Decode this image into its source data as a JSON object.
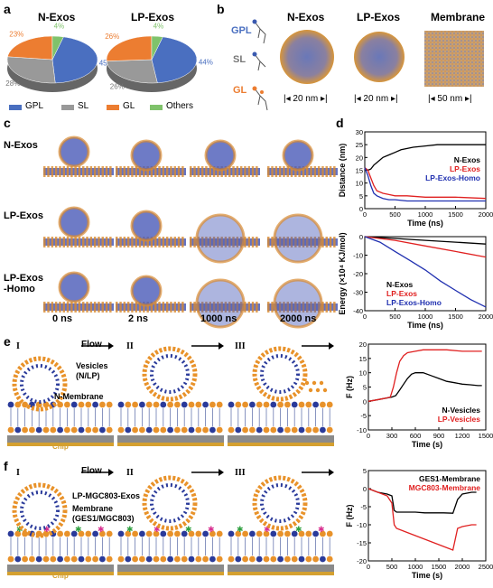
{
  "panels": {
    "a": {
      "letter": "a",
      "pies": [
        {
          "title": "N-Exos",
          "slices": [
            {
              "name": "GPL",
              "value": 45,
              "label": "45%",
              "color": "#4a6fc0"
            },
            {
              "name": "SL",
              "value": 28,
              "label": "28%",
              "color": "#999999"
            },
            {
              "name": "GL",
              "value": 23,
              "label": "23%",
              "color": "#ec7d31"
            },
            {
              "name": "Others",
              "value": 4,
              "label": "4%",
              "color": "#7fc26b"
            }
          ]
        },
        {
          "title": "LP-Exos",
          "slices": [
            {
              "name": "GPL",
              "value": 44,
              "label": "44%",
              "color": "#4a6fc0"
            },
            {
              "name": "SL",
              "value": 26,
              "label": "26%",
              "color": "#999999"
            },
            {
              "name": "GL",
              "value": 26,
              "label": "26%",
              "color": "#ec7d31"
            },
            {
              "name": "Others",
              "value": 4,
              "label": "4%",
              "color": "#7fc26b"
            }
          ]
        }
      ],
      "legend": [
        "GPL",
        "SL",
        "GL",
        "Others"
      ]
    },
    "b": {
      "letter": "b",
      "lipids": [
        "GPL",
        "SL",
        "GL"
      ],
      "columns": [
        "N-Exos",
        "LP-Exos",
        "Membrane"
      ],
      "scales": [
        "20 nm",
        "20 nm",
        "50 nm"
      ]
    },
    "c": {
      "letter": "c",
      "rows": [
        "N-Exos",
        "LP-Exos",
        "LP-Exos\n-Homo"
      ],
      "times": [
        "0 ns",
        "2 ns",
        "1000 ns",
        "2000 ns"
      ]
    },
    "d": {
      "letter": "d"
    },
    "e": {
      "letter": "e",
      "steps": [
        "I",
        "II",
        "III"
      ],
      "flow": "Flow",
      "vesicle_label": "Vesicles\n(N/LP)",
      "membrane_label": "N-Membrane",
      "chip": "Chip"
    },
    "f": {
      "letter": "f",
      "steps": [
        "I",
        "II",
        "III"
      ],
      "flow": "Flow",
      "vesicle_label": "LP-MGC803-Exos",
      "membrane_label": "Membrane\n(GES1/MGC803)",
      "chip": "Chip"
    }
  },
  "chart_data": [
    {
      "type": "line",
      "id": "d-distance",
      "ylabel": "Distance (nm)",
      "xlabel": "Time (ns)",
      "xlim": [
        0,
        2000
      ],
      "ylim": [
        0,
        30
      ],
      "xticks": [
        0,
        500,
        1000,
        1500,
        2000
      ],
      "yticks": [
        0,
        5,
        10,
        15,
        20,
        25,
        30
      ],
      "series": [
        {
          "name": "N-Exos",
          "color": "#000000",
          "x": [
            0,
            50,
            100,
            150,
            200,
            300,
            400,
            500,
            600,
            800,
            1000,
            1200,
            1500,
            1800,
            2000
          ],
          "y": [
            16,
            15,
            15.5,
            17,
            18,
            20,
            21,
            22,
            23,
            24,
            24.5,
            25,
            25,
            25,
            25
          ]
        },
        {
          "name": "LP-Exos",
          "color": "#e02020",
          "x": [
            0,
            50,
            100,
            150,
            200,
            300,
            400,
            500,
            700,
            1000,
            1500,
            2000
          ],
          "y": [
            16,
            15,
            12,
            9,
            7,
            6,
            5.5,
            5,
            5,
            4.5,
            4.5,
            4
          ]
        },
        {
          "name": "LP-Exos-Homo",
          "color": "#2030b0",
          "x": [
            0,
            50,
            100,
            150,
            200,
            300,
            400,
            500,
            700,
            1000,
            1500,
            2000
          ],
          "y": [
            16,
            13,
            9,
            6,
            5,
            4,
            3.5,
            3.5,
            3,
            3,
            3,
            3
          ]
        }
      ]
    },
    {
      "type": "line",
      "id": "d-energy",
      "ylabel": "Energy (×10⁴ KJ/mol)",
      "xlabel": "Time (ns)",
      "xlim": [
        0,
        2000
      ],
      "ylim": [
        -40,
        0
      ],
      "xticks": [
        0,
        500,
        1000,
        1500,
        2000
      ],
      "yticks": [
        0,
        -10,
        -20,
        -30,
        -40
      ],
      "series": [
        {
          "name": "N-Exos",
          "color": "#000000",
          "x": [
            0,
            500,
            1000,
            1500,
            2000
          ],
          "y": [
            0,
            -1,
            -2,
            -3,
            -4
          ]
        },
        {
          "name": "LP-Exos",
          "color": "#e02020",
          "x": [
            0,
            500,
            1000,
            1500,
            2000
          ],
          "y": [
            0,
            -2,
            -5,
            -8,
            -11
          ]
        },
        {
          "name": "LP-Exos-Homo",
          "color": "#2030b0",
          "x": [
            0,
            250,
            500,
            750,
            1000,
            1250,
            1500,
            1750,
            2000
          ],
          "y": [
            0,
            -3,
            -8,
            -13,
            -18,
            -24,
            -29,
            -34,
            -38
          ]
        }
      ]
    },
    {
      "type": "line",
      "id": "e-qcm",
      "ylabel": "F (Hz)",
      "xlabel": "Time (s)",
      "xlim": [
        0,
        1500
      ],
      "ylim": [
        -10,
        20
      ],
      "xticks": [
        0,
        300,
        600,
        900,
        1200,
        1500
      ],
      "yticks": [
        -10,
        -5,
        0,
        5,
        10,
        15,
        20
      ],
      "series": [
        {
          "name": "N-Vesicles",
          "color": "#000000",
          "x": [
            0,
            100,
            200,
            300,
            350,
            400,
            450,
            500,
            550,
            600,
            700,
            800,
            900,
            1000,
            1100,
            1200,
            1300,
            1400,
            1450
          ],
          "y": [
            0,
            0.5,
            1,
            1.5,
            2,
            4,
            6,
            8,
            9.5,
            10,
            10,
            9,
            8,
            7,
            6.5,
            6,
            5.8,
            5.5,
            5.5
          ]
        },
        {
          "name": "LP-Vesicles",
          "color": "#e02020",
          "x": [
            0,
            100,
            200,
            280,
            320,
            360,
            400,
            450,
            500,
            600,
            700,
            800,
            900,
            1000,
            1200,
            1400,
            1450
          ],
          "y": [
            0,
            0.5,
            1,
            1.5,
            5,
            10,
            14,
            16,
            17,
            17.5,
            18,
            18,
            18,
            18,
            17.5,
            17.5,
            17.5
          ]
        }
      ]
    },
    {
      "type": "line",
      "id": "f-qcm",
      "ylabel": "F (Hz)",
      "xlabel": "Time (s)",
      "xlim": [
        0,
        2500
      ],
      "ylim": [
        -20,
        5
      ],
      "xticks": [
        0,
        500,
        1000,
        1500,
        2000,
        2500
      ],
      "yticks": [
        -20,
        -15,
        -10,
        -5,
        0,
        5
      ],
      "series": [
        {
          "name": "GES1-Membrane",
          "color": "#000000",
          "x": [
            0,
            200,
            400,
            500,
            550,
            600,
            800,
            1000,
            1200,
            1400,
            1600,
            1800,
            1900,
            2000,
            2200,
            2300
          ],
          "y": [
            0,
            -1,
            -1.5,
            -2,
            -6,
            -6.5,
            -6.5,
            -6.5,
            -6.7,
            -6.7,
            -6.7,
            -6.8,
            -3,
            -1.5,
            -1,
            -1
          ]
        },
        {
          "name": "MGC803-Membrane",
          "color": "#e02020",
          "x": [
            0,
            200,
            400,
            500,
            550,
            600,
            800,
            1000,
            1200,
            1400,
            1600,
            1800,
            1850,
            1900,
            2000,
            2200,
            2300
          ],
          "y": [
            0,
            -1,
            -2,
            -4,
            -10,
            -11,
            -12,
            -13,
            -14,
            -15,
            -16,
            -17,
            -14,
            -11,
            -10.5,
            -10,
            -10
          ]
        }
      ]
    }
  ]
}
